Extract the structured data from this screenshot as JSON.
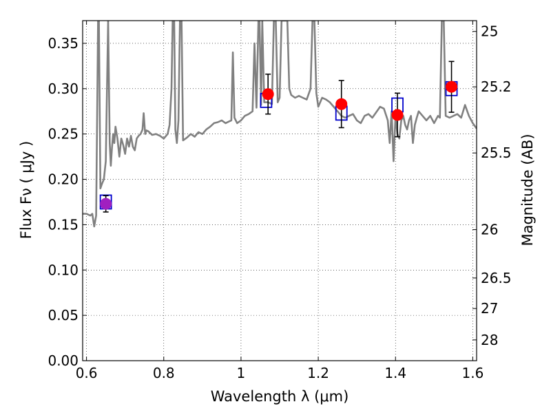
{
  "chart_data": {
    "type": "line",
    "xlabel": "Wavelength  λ (μm)",
    "ylabel": "Flux  Fν  ( μJy )",
    "ylabel_right": "Magnitude (AB)",
    "xlim": [
      0.59,
      1.61
    ],
    "ylim": [
      0.0,
      0.375
    ],
    "grid": true,
    "x_ticks": [
      {
        "value": 0.6,
        "label": "0.6"
      },
      {
        "value": 0.8,
        "label": "0.8"
      },
      {
        "value": 1.0,
        "label": "1"
      },
      {
        "value": 1.2,
        "label": "1.2"
      },
      {
        "value": 1.4,
        "label": "1.4"
      },
      {
        "value": 1.6,
        "label": "1.6"
      }
    ],
    "y_ticks": [
      {
        "value": 0.0,
        "label": "0.00"
      },
      {
        "value": 0.05,
        "label": "0.05"
      },
      {
        "value": 0.1,
        "label": "0.10"
      },
      {
        "value": 0.15,
        "label": "0.15"
      },
      {
        "value": 0.2,
        "label": "0.20"
      },
      {
        "value": 0.25,
        "label": "0.25"
      },
      {
        "value": 0.3,
        "label": "0.30"
      },
      {
        "value": 0.35,
        "label": "0.35"
      }
    ],
    "right_ticks": [
      {
        "value": 25,
        "label": "25"
      },
      {
        "value": 25.2,
        "label": "25.2"
      },
      {
        "value": 25.5,
        "label": "25.5"
      },
      {
        "value": 26,
        "label": "26"
      },
      {
        "value": 26.5,
        "label": "26.5"
      },
      {
        "value": 27,
        "label": "27"
      },
      {
        "value": 28,
        "label": "28"
      }
    ],
    "colors": {
      "model": "#808080",
      "measured": "#ff0000",
      "measured_first": "#a020c0",
      "model_photometry": "#0000cc",
      "errorbar": "#000000"
    },
    "model_spectrum": {
      "x": [
        0.59,
        0.6,
        0.61,
        0.615,
        0.62,
        0.625,
        0.63,
        0.632,
        0.636,
        0.64,
        0.645,
        0.65,
        0.656,
        0.66,
        0.663,
        0.666,
        0.669,
        0.672,
        0.675,
        0.68,
        0.685,
        0.69,
        0.695,
        0.7,
        0.705,
        0.71,
        0.715,
        0.72,
        0.725,
        0.73,
        0.735,
        0.74,
        0.745,
        0.748,
        0.752,
        0.755,
        0.76,
        0.77,
        0.78,
        0.79,
        0.8,
        0.81,
        0.815,
        0.82,
        0.823,
        0.827,
        0.83,
        0.834,
        0.838,
        0.842,
        0.846,
        0.85,
        0.86,
        0.87,
        0.88,
        0.89,
        0.9,
        0.91,
        0.92,
        0.93,
        0.94,
        0.95,
        0.96,
        0.97,
        0.975,
        0.979,
        0.983,
        0.99,
        1.0,
        1.01,
        1.02,
        1.03,
        1.035,
        1.04,
        1.045,
        1.048,
        1.052,
        1.055,
        1.06,
        1.07,
        1.08,
        1.085,
        1.09,
        1.095,
        1.1,
        1.105,
        1.11,
        1.115,
        1.12,
        1.125,
        1.13,
        1.14,
        1.15,
        1.16,
        1.17,
        1.18,
        1.185,
        1.19,
        1.195,
        1.2,
        1.21,
        1.22,
        1.23,
        1.24,
        1.25,
        1.26,
        1.27,
        1.28,
        1.29,
        1.3,
        1.31,
        1.32,
        1.33,
        1.34,
        1.35,
        1.36,
        1.37,
        1.38,
        1.385,
        1.39,
        1.395,
        1.4,
        1.405,
        1.41,
        1.415,
        1.42,
        1.425,
        1.43,
        1.435,
        1.44,
        1.445,
        1.45,
        1.455,
        1.46,
        1.47,
        1.48,
        1.49,
        1.5,
        1.51,
        1.515,
        1.52,
        1.525,
        1.53,
        1.54,
        1.55,
        1.56,
        1.57,
        1.58,
        1.59,
        1.6,
        1.61
      ],
      "y": [
        0.162,
        0.162,
        0.16,
        0.162,
        0.148,
        0.16,
        0.375,
        0.375,
        0.19,
        0.195,
        0.2,
        0.22,
        0.375,
        0.24,
        0.215,
        0.235,
        0.25,
        0.24,
        0.258,
        0.245,
        0.225,
        0.245,
        0.238,
        0.228,
        0.245,
        0.236,
        0.248,
        0.236,
        0.232,
        0.245,
        0.248,
        0.25,
        0.255,
        0.273,
        0.25,
        0.254,
        0.253,
        0.249,
        0.25,
        0.248,
        0.245,
        0.25,
        0.26,
        0.3,
        0.375,
        0.375,
        0.255,
        0.24,
        0.265,
        0.375,
        0.375,
        0.243,
        0.246,
        0.25,
        0.247,
        0.252,
        0.25,
        0.255,
        0.258,
        0.262,
        0.263,
        0.265,
        0.262,
        0.264,
        0.265,
        0.34,
        0.268,
        0.262,
        0.265,
        0.27,
        0.272,
        0.275,
        0.35,
        0.279,
        0.375,
        0.375,
        0.282,
        0.375,
        0.285,
        0.285,
        0.283,
        0.375,
        0.375,
        0.285,
        0.29,
        0.375,
        0.375,
        0.375,
        0.375,
        0.3,
        0.293,
        0.29,
        0.292,
        0.29,
        0.288,
        0.3,
        0.375,
        0.375,
        0.295,
        0.28,
        0.29,
        0.288,
        0.285,
        0.28,
        0.275,
        0.27,
        0.268,
        0.27,
        0.272,
        0.265,
        0.262,
        0.27,
        0.272,
        0.268,
        0.274,
        0.28,
        0.278,
        0.265,
        0.24,
        0.275,
        0.22,
        0.27,
        0.25,
        0.245,
        0.265,
        0.27,
        0.26,
        0.255,
        0.265,
        0.27,
        0.24,
        0.26,
        0.268,
        0.275,
        0.27,
        0.265,
        0.27,
        0.262,
        0.27,
        0.268,
        0.375,
        0.375,
        0.27,
        0.268,
        0.27,
        0.272,
        0.268,
        0.282,
        0.27,
        0.262,
        0.256
      ]
    },
    "measured_points": [
      {
        "x": 0.65,
        "y": 0.173,
        "err": 0.009
      },
      {
        "x": 1.07,
        "y": 0.294,
        "err": 0.022
      },
      {
        "x": 1.26,
        "y": 0.283,
        "err": 0.026
      },
      {
        "x": 1.405,
        "y": 0.271,
        "err": 0.024
      },
      {
        "x": 1.545,
        "y": 0.302,
        "err": 0.028
      }
    ],
    "model_photometry": [
      {
        "x": 0.65,
        "y": 0.175
      },
      {
        "x": 1.065,
        "y": 0.287
      },
      {
        "x": 1.26,
        "y": 0.273
      },
      {
        "x": 1.405,
        "y": 0.282
      },
      {
        "x": 1.545,
        "y": 0.3
      }
    ]
  }
}
